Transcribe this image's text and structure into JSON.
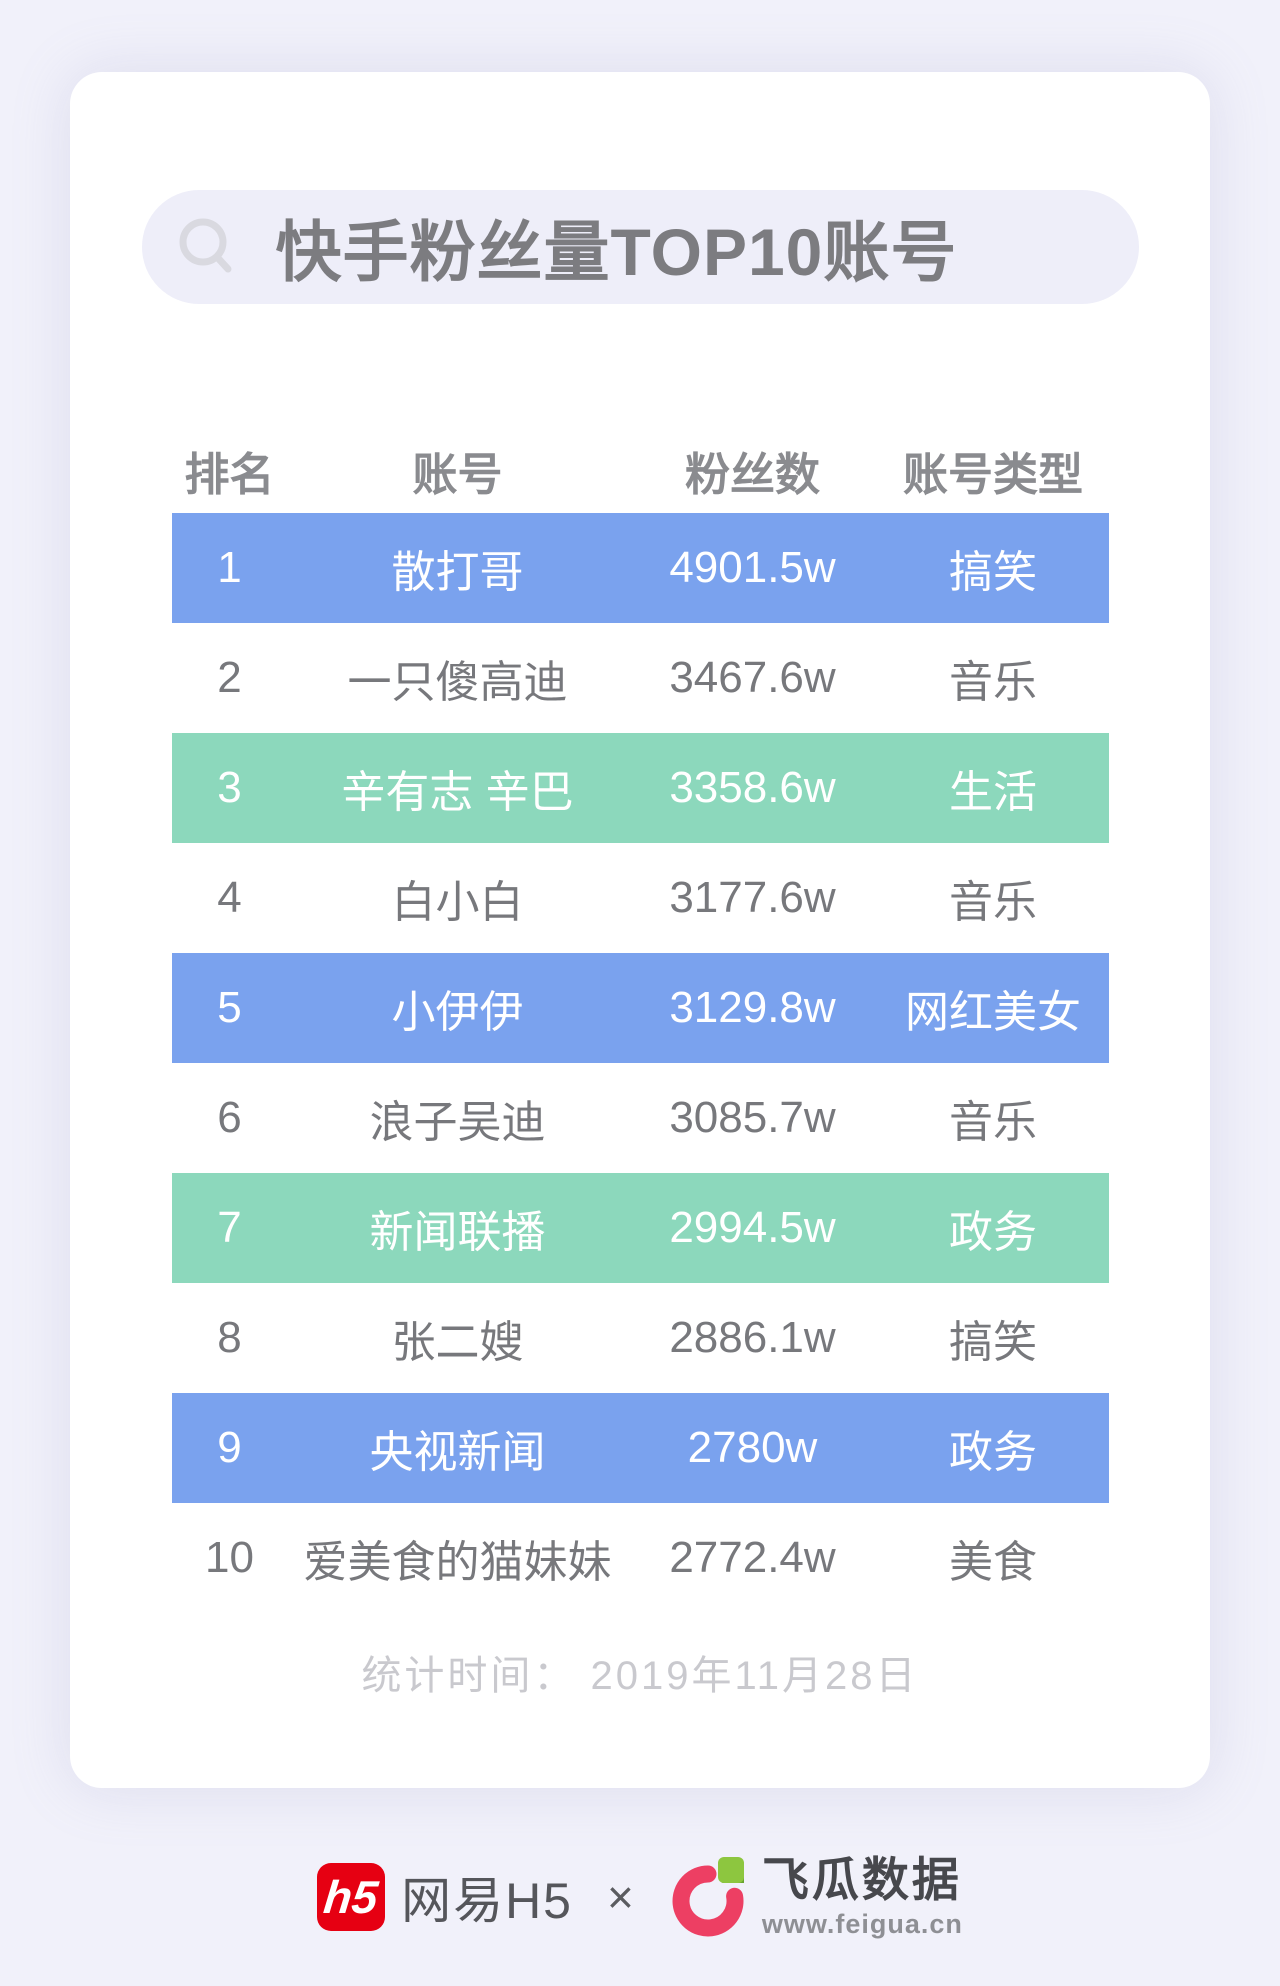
{
  "search": {
    "title": "快手粉丝量TOP10账号"
  },
  "table": {
    "headers": [
      "排名",
      "账号",
      "粉丝数",
      "账号类型"
    ],
    "rows": [
      {
        "rank": "1",
        "account": "散打哥",
        "fans": "4901.5w",
        "type": "搞笑",
        "highlight": "blue"
      },
      {
        "rank": "2",
        "account": "一只傻高迪",
        "fans": "3467.6w",
        "type": "音乐",
        "highlight": "none"
      },
      {
        "rank": "3",
        "account": "辛有志 辛巴",
        "fans": "3358.6w",
        "type": "生活",
        "highlight": "green"
      },
      {
        "rank": "4",
        "account": "白小白",
        "fans": "3177.6w",
        "type": "音乐",
        "highlight": "none"
      },
      {
        "rank": "5",
        "account": "小伊伊",
        "fans": "3129.8w",
        "type": "网红美女",
        "highlight": "blue"
      },
      {
        "rank": "6",
        "account": "浪子吴迪",
        "fans": "3085.7w",
        "type": "音乐",
        "highlight": "none"
      },
      {
        "rank": "7",
        "account": "新闻联播",
        "fans": "2994.5w",
        "type": "政务",
        "highlight": "green"
      },
      {
        "rank": "8",
        "account": "张二嫂",
        "fans": "2886.1w",
        "type": "搞笑",
        "highlight": "none"
      },
      {
        "rank": "9",
        "account": "央视新闻",
        "fans": "2780w",
        "type": "政务",
        "highlight": "blue"
      },
      {
        "rank": "10",
        "account": "爱美食的猫妹妹",
        "fans": "2772.4w",
        "type": "美食",
        "highlight": "none"
      }
    ]
  },
  "footer": {
    "stat_time": "统计时间： 2019年11月28日"
  },
  "branding": {
    "h5_badge": "h5",
    "netease_label": "网易H5",
    "separator": "×",
    "feigua_label": "飞瓜数据",
    "feigua_url": "www.feigua.cn"
  },
  "colors": {
    "page_bg": "#F1F1FA",
    "card_bg": "#FFFFFF",
    "pill_bg": "#EEEEF9",
    "row_blue": "#7AA2EE",
    "row_green": "#8CD8BC",
    "header_text": "#8A8B8F",
    "row_text": "#77787C",
    "highlight_text": "#FFFFFF",
    "title_text": "#7C7C80",
    "stat_text": "#C9C9CE",
    "h5_red": "#E60012",
    "feigua_ring": "#ED3F63",
    "feigua_leaf": "#8DC63F"
  },
  "chart_data": {
    "type": "table",
    "title": "快手粉丝量TOP10账号",
    "columns": [
      "排名",
      "账号",
      "粉丝数",
      "账号类型"
    ],
    "rows": [
      [
        "1",
        "散打哥",
        "4901.5w",
        "搞笑"
      ],
      [
        "2",
        "一只傻高迪",
        "3467.6w",
        "音乐"
      ],
      [
        "3",
        "辛有志 辛巴",
        "3358.6w",
        "生活"
      ],
      [
        "4",
        "白小白",
        "3177.6w",
        "音乐"
      ],
      [
        "5",
        "小伊伊",
        "3129.8w",
        "网红美女"
      ],
      [
        "6",
        "浪子吴迪",
        "3085.7w",
        "音乐"
      ],
      [
        "7",
        "新闻联播",
        "2994.5w",
        "政务"
      ],
      [
        "8",
        "张二嫂",
        "2886.1w",
        "搞笑"
      ],
      [
        "9",
        "央视新闻",
        "2780w",
        "政务"
      ],
      [
        "10",
        "爱美食的猫妹妹",
        "2772.4w",
        "美食"
      ]
    ],
    "fans_values_wan": [
      4901.5,
      3467.6,
      3358.6,
      3177.6,
      3129.8,
      3085.7,
      2994.5,
      2886.1,
      2780,
      2772.4
    ],
    "note": "统计时间： 2019年11月28日"
  }
}
